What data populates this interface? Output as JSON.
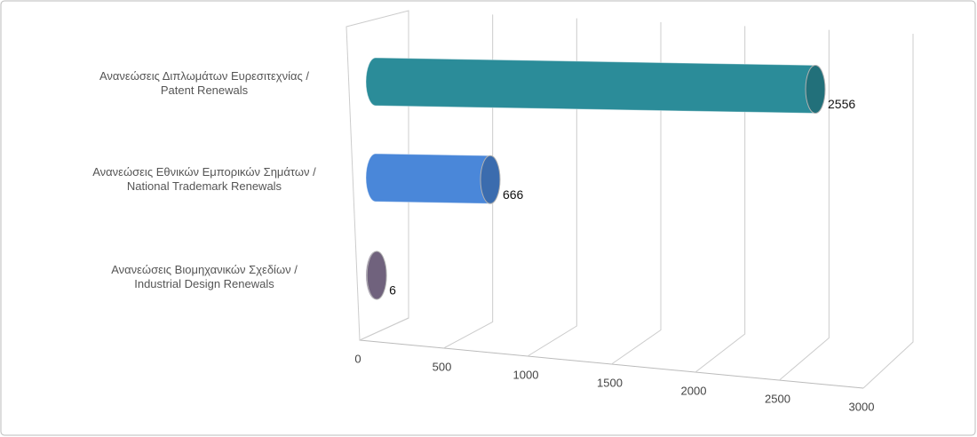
{
  "chart_data": {
    "type": "bar3d",
    "categories": [
      "Ανανεώσεις Διπλωμάτων Ευρεσιτεχνίας /\nPatent Renewals",
      "Ανανεώσεις Εθνικών Εμπορικών Σημάτων /\nNational Trademark Renewals",
      "Ανανεώσεις Βιομηχανικών Σχεδίων  /\nIndustrial Design Renewals"
    ],
    "values": [
      2556,
      666,
      6
    ],
    "colors": [
      "#2b8c99",
      "#4a87d9",
      "#8c7b9c"
    ],
    "xlim": [
      0,
      3000
    ],
    "xticks": [
      0,
      500,
      1000,
      1500,
      2000,
      2500,
      3000
    ],
    "grid": true
  }
}
